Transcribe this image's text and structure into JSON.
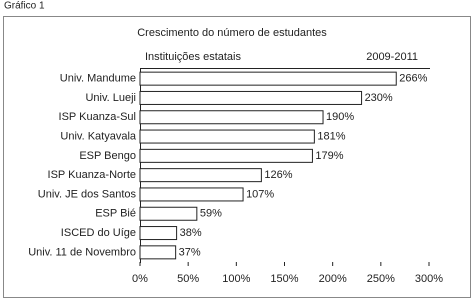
{
  "caption": "Gráfico 1",
  "chart_data": {
    "type": "bar",
    "orientation": "horizontal",
    "title": "Crescimento do número de estudantes",
    "subtitle": "Instituições estatais",
    "period": "2009-2011",
    "categories": [
      "Univ. Mandume",
      "Univ. Lueji",
      "ISP Kuanza-Sul",
      "Univ. Katyavala",
      "ESP Bengo",
      "ISP Kuanza-Norte",
      "Univ. JE dos Santos",
      "ESP Bié",
      "ISCED do Uíge",
      "Univ. 11 de Novembro"
    ],
    "values": [
      266,
      230,
      190,
      181,
      179,
      126,
      107,
      59,
      38,
      37
    ],
    "value_labels": [
      "266%",
      "230%",
      "190%",
      "181%",
      "179%",
      "126%",
      "107%",
      "59%",
      "38%",
      "37%"
    ],
    "color": "#ffffff",
    "xlim": [
      0,
      300
    ],
    "xticks": [
      {
        "value": 0,
        "label": "0%"
      },
      {
        "value": 50,
        "label": "50%"
      },
      {
        "value": 100,
        "label": "100%"
      },
      {
        "value": 150,
        "label": "150%"
      },
      {
        "value": 200,
        "label": "200%"
      },
      {
        "value": 250,
        "label": "250%"
      },
      {
        "value": 300,
        "label": "300%"
      }
    ],
    "grid": false
  }
}
